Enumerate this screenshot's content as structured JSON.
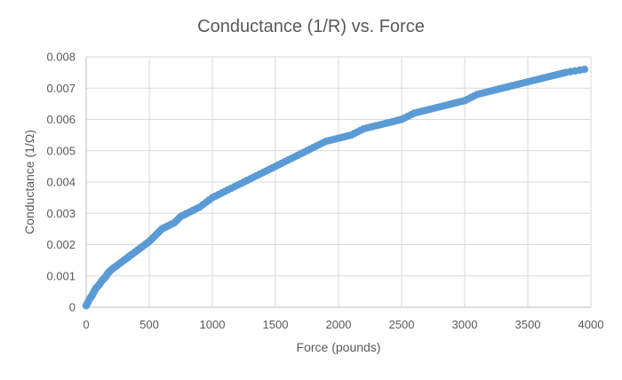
{
  "chart_data": {
    "type": "scatter",
    "title": "Conductance (1/R) vs. Force",
    "xlabel": "Force (pounds)",
    "ylabel": "Conductance (1/Ω)",
    "xlim": [
      0,
      4000
    ],
    "ylim": [
      0,
      0.008
    ],
    "x_ticks": [
      "0",
      "500",
      "1000",
      "1500",
      "2000",
      "2500",
      "3000",
      "3500",
      "4000"
    ],
    "y_ticks": [
      "0",
      "0.001",
      "0.002",
      "0.003",
      "0.004",
      "0.005",
      "0.006",
      "0.007",
      "0.008"
    ],
    "grid": true,
    "legend": "none",
    "series": [
      {
        "color": "#5b9bd5",
        "points": [
          [
            0,
            5e-05
          ],
          [
            25,
            0.00025
          ],
          [
            50,
            0.0004
          ],
          [
            75,
            0.0006
          ],
          [
            100,
            0.0007
          ],
          [
            125,
            0.00085
          ],
          [
            150,
            0.00095
          ],
          [
            175,
            0.0011
          ],
          [
            200,
            0.0012
          ],
          [
            250,
            0.00135
          ],
          [
            300,
            0.0015
          ],
          [
            350,
            0.00165
          ],
          [
            400,
            0.0018
          ],
          [
            450,
            0.00195
          ],
          [
            500,
            0.0021
          ],
          [
            550,
            0.0023
          ],
          [
            600,
            0.0025
          ],
          [
            650,
            0.0026
          ],
          [
            700,
            0.0027
          ],
          [
            750,
            0.0029
          ],
          [
            800,
            0.003
          ],
          [
            900,
            0.0032
          ],
          [
            1000,
            0.0035
          ],
          [
            1100,
            0.0037
          ],
          [
            1200,
            0.0039
          ],
          [
            1300,
            0.0041
          ],
          [
            1400,
            0.0043
          ],
          [
            1500,
            0.0045
          ],
          [
            1600,
            0.0047
          ],
          [
            1700,
            0.0049
          ],
          [
            1800,
            0.0051
          ],
          [
            1900,
            0.0053
          ],
          [
            2000,
            0.0054
          ],
          [
            2100,
            0.0055
          ],
          [
            2200,
            0.0057
          ],
          [
            2300,
            0.0058
          ],
          [
            2400,
            0.0059
          ],
          [
            2500,
            0.006
          ],
          [
            2600,
            0.0062
          ],
          [
            2700,
            0.0063
          ],
          [
            2800,
            0.0064
          ],
          [
            2900,
            0.0065
          ],
          [
            3000,
            0.0066
          ],
          [
            3100,
            0.0068
          ],
          [
            3200,
            0.0069
          ],
          [
            3300,
            0.007
          ],
          [
            3400,
            0.0071
          ],
          [
            3500,
            0.0072
          ],
          [
            3600,
            0.0073
          ],
          [
            3700,
            0.0074
          ],
          [
            3800,
            0.0075
          ],
          [
            3950,
            0.0076
          ]
        ]
      }
    ]
  }
}
